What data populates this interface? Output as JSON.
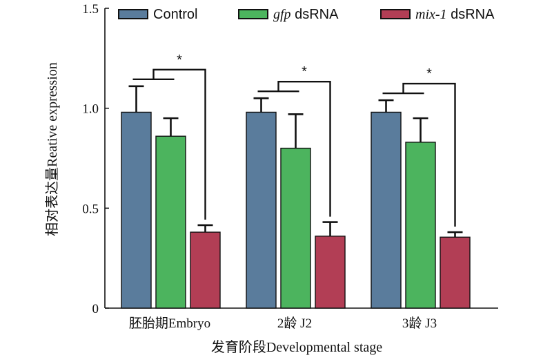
{
  "chart_data": {
    "type": "bar",
    "categories": [
      "胚胎期Embryo",
      "2龄 J2",
      "3龄 J3"
    ],
    "series": [
      {
        "name": "Control",
        "values": [
          0.98,
          0.98,
          0.98
        ],
        "errors": [
          0.13,
          0.07,
          0.06
        ],
        "color": "#5a7c9c"
      },
      {
        "name": "gfp dsRNA",
        "values": [
          0.86,
          0.8,
          0.83
        ],
        "errors": [
          0.09,
          0.17,
          0.12
        ],
        "color": "#4cb45e"
      },
      {
        "name": "mix-1 dsRNA",
        "values": [
          0.38,
          0.36,
          0.355
        ],
        "errors": [
          0.035,
          0.07,
          0.025
        ],
        "color": "#b23e55"
      }
    ],
    "legend": [
      {
        "italic": "",
        "plain": "Control"
      },
      {
        "italic": "gfp",
        "plain": " dsRNA"
      },
      {
        "italic": "mix-1",
        "plain": " dsRNA"
      }
    ],
    "significance_label": "*",
    "xlabel": "发育阶段Developmental stage",
    "ylabel": "相对表达量Reative expression",
    "ylim": [
      0,
      1.5
    ],
    "yticks": [
      0,
      0.5,
      1.0,
      1.5
    ],
    "ytick_labels": [
      "0",
      "0.5",
      "1.0",
      "1.5"
    ],
    "grid": false,
    "legend_position": "top"
  }
}
